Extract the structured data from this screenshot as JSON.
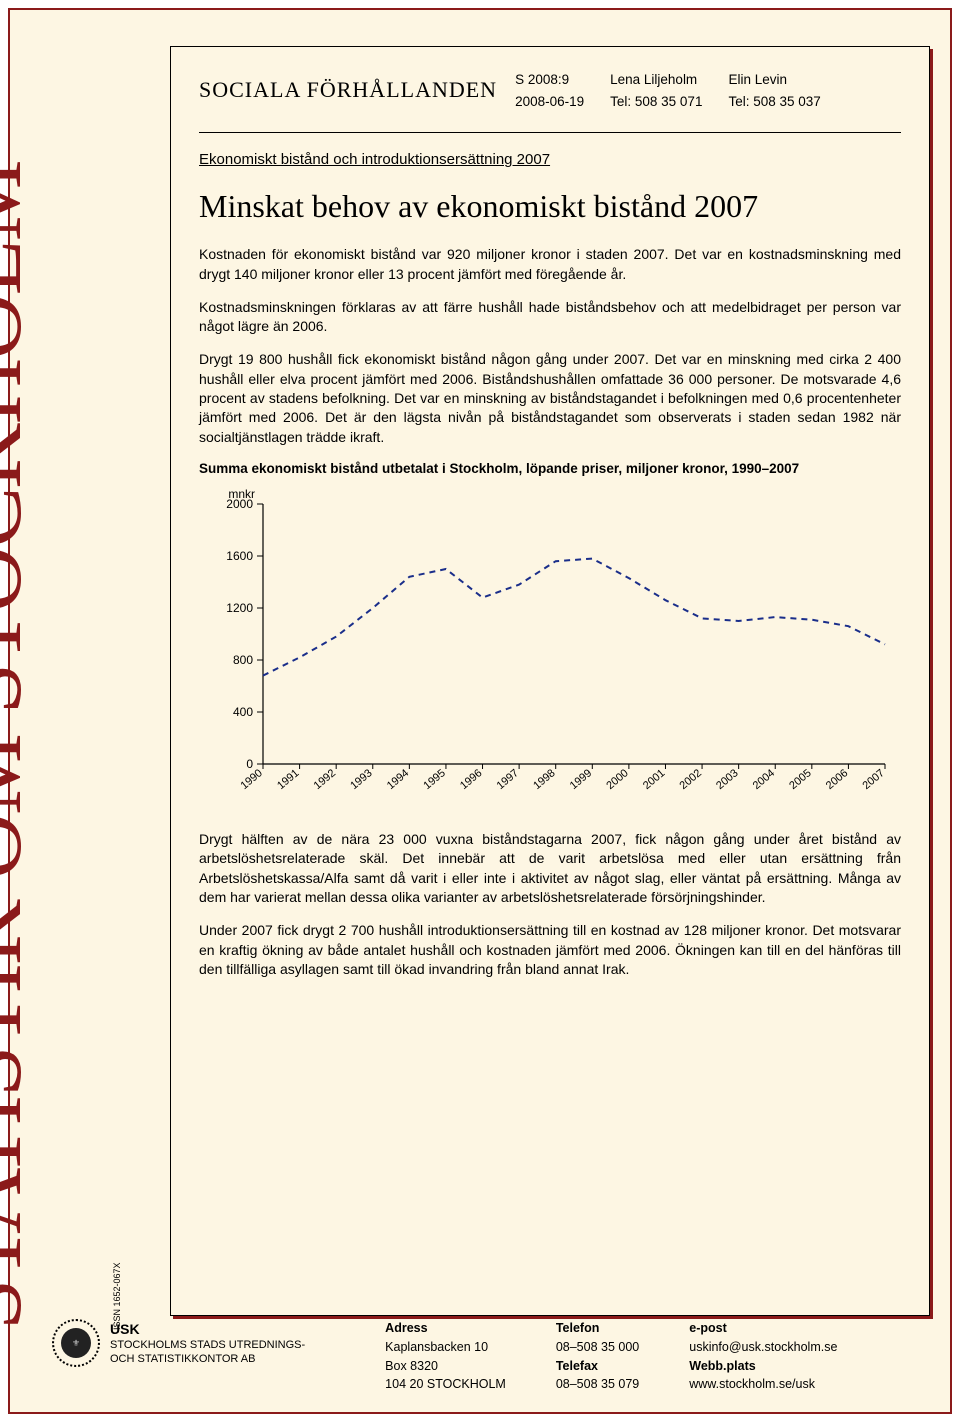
{
  "sidebar": {
    "title": "STATISTIK OM STOCKHOLM",
    "issn": "ISSN 1652-067X"
  },
  "header": {
    "series_title": "SOCIALA FÖRHÅLLANDEN",
    "col1": {
      "line1": "S 2008:9",
      "line2": "2008-06-19"
    },
    "col2": {
      "line1": "Lena Liljeholm",
      "line2": "Tel: 508 35 071"
    },
    "col3": {
      "line1": "Elin Levin",
      "line2": "Tel: 508 35 037"
    }
  },
  "subtitle": "Ekonomiskt bistånd och introduktionsersättning 2007",
  "big_title": "Minskat behov av ekonomiskt bistånd 2007",
  "paragraphs": {
    "p1": "Kostnaden för ekonomiskt bistånd var 920 miljoner kronor i staden 2007. Det var en kostnadsminskning med drygt 140 miljoner kronor eller 13 procent jämfört med föregående år.",
    "p2": "Kostnadsminskningen förklaras av att färre hushåll hade biståndsbehov och att medelbidraget per person var något lägre än 2006.",
    "p3": "Drygt 19 800 hushåll fick ekonomiskt bistånd någon gång under 2007. Det var en minskning med cirka 2 400 hushåll eller elva procent jämfört med 2006. Biståndshushållen omfattade 36 000 personer. De motsvarade 4,6 procent av stadens befolkning. Det var en minskning av biståndstagandet i befolkningen med 0,6 procentenheter jämfört med 2006. Det är den lägsta nivån på biståndstagandet som observerats i staden sedan 1982 när socialtjänstlagen trädde ikraft.",
    "p4": "Drygt hälften av de nära 23 000 vuxna biståndstagarna 2007, fick någon gång under året bistånd av arbetslöshetsrelaterade skäl. Det innebär att de varit arbetslösa med eller utan ersättning från Arbetslöshetskassa/Alfa samt då varit i eller inte i aktivitet av något slag, eller väntat på ersättning. Många av dem har varierat mellan dessa olika varianter av arbetslöshetsrelaterade försörjningshinder.",
    "p5": "Under 2007 fick drygt 2 700 hushåll introduktionsersättning till en kostnad av 128 miljoner kronor. Det motsvarar en kraftig ökning av både antalet hushåll och kostnaden jämfört med 2006. Ökningen kan till en del hänföras till den tillfälliga asyllagen samt till ökad invandring från bland annat Irak."
  },
  "chart": {
    "caption": "Summa ekonomiskt bistånd utbetalat i Stockholm, löpande priser, miljoner kronor, 1990–2007",
    "type": "line",
    "y_unit_label": "mnkr",
    "years": [
      "1990",
      "1991",
      "1992",
      "1993",
      "1994",
      "1995",
      "1996",
      "1997",
      "1998",
      "1999",
      "2000",
      "2001",
      "2002",
      "2003",
      "2004",
      "2005",
      "2006",
      "2007"
    ],
    "values": [
      680,
      820,
      980,
      1200,
      1440,
      1500,
      1280,
      1380,
      1560,
      1580,
      1430,
      1260,
      1120,
      1100,
      1130,
      1110,
      1060,
      920
    ],
    "ylim": [
      0,
      2000
    ],
    "ytick_step": 400,
    "line_color": "#1a2e8a",
    "line_width": 2,
    "line_dash": "6 5",
    "axis_color": "#000000",
    "tick_color": "#000000",
    "background_color": "#fdf6e3",
    "label_fontsize": 11,
    "axis_fontsize": 12
  },
  "footer": {
    "org": {
      "short": "USK",
      "line1": "STOCKHOLMS STADS UTREDNINGS-",
      "line2": "OCH STATISTIKKONTOR AB"
    },
    "address": {
      "hd": "Adress",
      "l1": "Kaplansbacken 10",
      "l2": "Box 8320",
      "l3": "104 20 STOCKHOLM"
    },
    "phone": {
      "hd": "Telefon",
      "l1": "08–508 35 000",
      "hd2": "Telefax",
      "l2": "08–508 35 079"
    },
    "web": {
      "hd": "e-post",
      "l1": "uskinfo@usk.stockholm.se",
      "hd2": "Webb.plats",
      "l2": "www.stockholm.se/usk"
    }
  }
}
